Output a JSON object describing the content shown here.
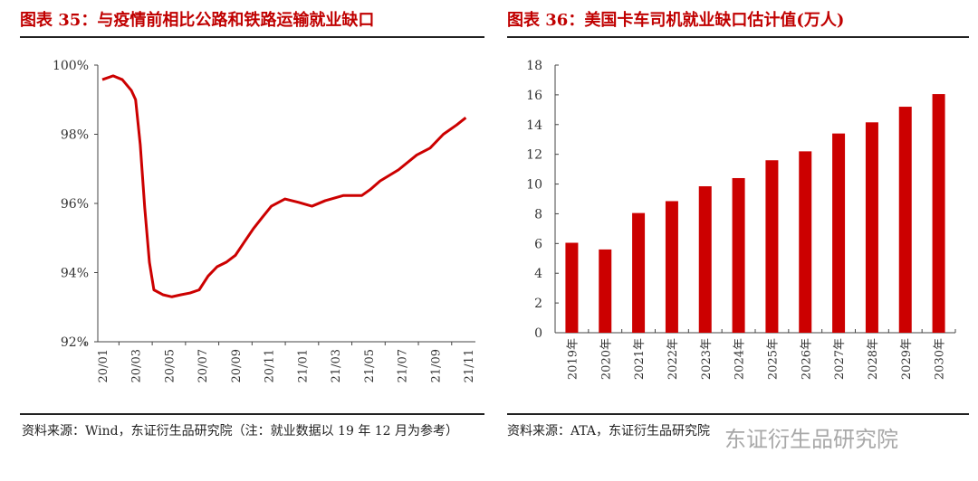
{
  "left": {
    "title": "图表 35：与疫情前相比公路和铁路运输就业缺口",
    "source": "资料来源：Wind，东证衍生品研究院（注：就业数据以 19 年 12 月为参考）"
  },
  "right": {
    "title": "图表 36：美国卡车司机就业缺口估计值(万人)",
    "source": "资料来源：ATA，东证衍生品研究院"
  },
  "watermark": "东证衍生品研究院",
  "colors": {
    "series": "#cc0000",
    "title": "#c00000"
  },
  "chart_data": [
    {
      "type": "line",
      "title": "与疫情前相比公路和铁路运输就业缺口",
      "ylim": [
        92,
        100
      ],
      "yticks": [
        "92%",
        "94%",
        "96%",
        "98%",
        "100%"
      ],
      "ytick_values": [
        92,
        94,
        96,
        98,
        100
      ],
      "xticks": [
        "20/01",
        "20/03",
        "20/05",
        "20/07",
        "20/09",
        "20/11",
        "21/01",
        "21/03",
        "21/05",
        "21/07",
        "21/09",
        "21/11"
      ],
      "x_unit": "months since 20/01",
      "series": [
        {
          "name": "就业缺口",
          "x": [
            0,
            0.65,
            1.2,
            1.74,
            2.0,
            2.28,
            2.55,
            2.83,
            3.1,
            3.64,
            4.18,
            4.73,
            5.27,
            5.82,
            6.36,
            6.9,
            7.45,
            8.0,
            8.53,
            9.08,
            9.62,
            10.16,
            10.98,
            11.8,
            12.6,
            13.4,
            14.5,
            15.6,
            16.1,
            16.7,
            17.8,
            18.9,
            19.7,
            20.5,
            21.3,
            21.85
          ],
          "y": [
            99.58,
            99.69,
            99.58,
            99.27,
            99.0,
            97.7,
            95.87,
            94.3,
            93.5,
            93.36,
            93.3,
            93.36,
            93.41,
            93.5,
            93.9,
            94.17,
            94.3,
            94.5,
            94.88,
            95.27,
            95.6,
            95.92,
            96.13,
            96.03,
            95.92,
            96.08,
            96.23,
            96.23,
            96.4,
            96.65,
            96.97,
            97.4,
            97.6,
            98.0,
            98.27,
            98.48
          ]
        }
      ]
    },
    {
      "type": "bar",
      "title": "美国卡车司机就业缺口估计值(万人)",
      "ylim": [
        0,
        18
      ],
      "yticks": [
        "0",
        "2",
        "4",
        "6",
        "8",
        "10",
        "12",
        "14",
        "16",
        "18"
      ],
      "categories": [
        "2019年",
        "2020年",
        "2021年",
        "2022年",
        "2023年",
        "2024年",
        "2025年",
        "2026年",
        "2027年",
        "2028年",
        "2029年",
        "2030年"
      ],
      "values": [
        6.05,
        5.6,
        8.05,
        8.85,
        9.85,
        10.4,
        11.6,
        12.2,
        13.4,
        14.15,
        15.2,
        16.05
      ]
    }
  ]
}
